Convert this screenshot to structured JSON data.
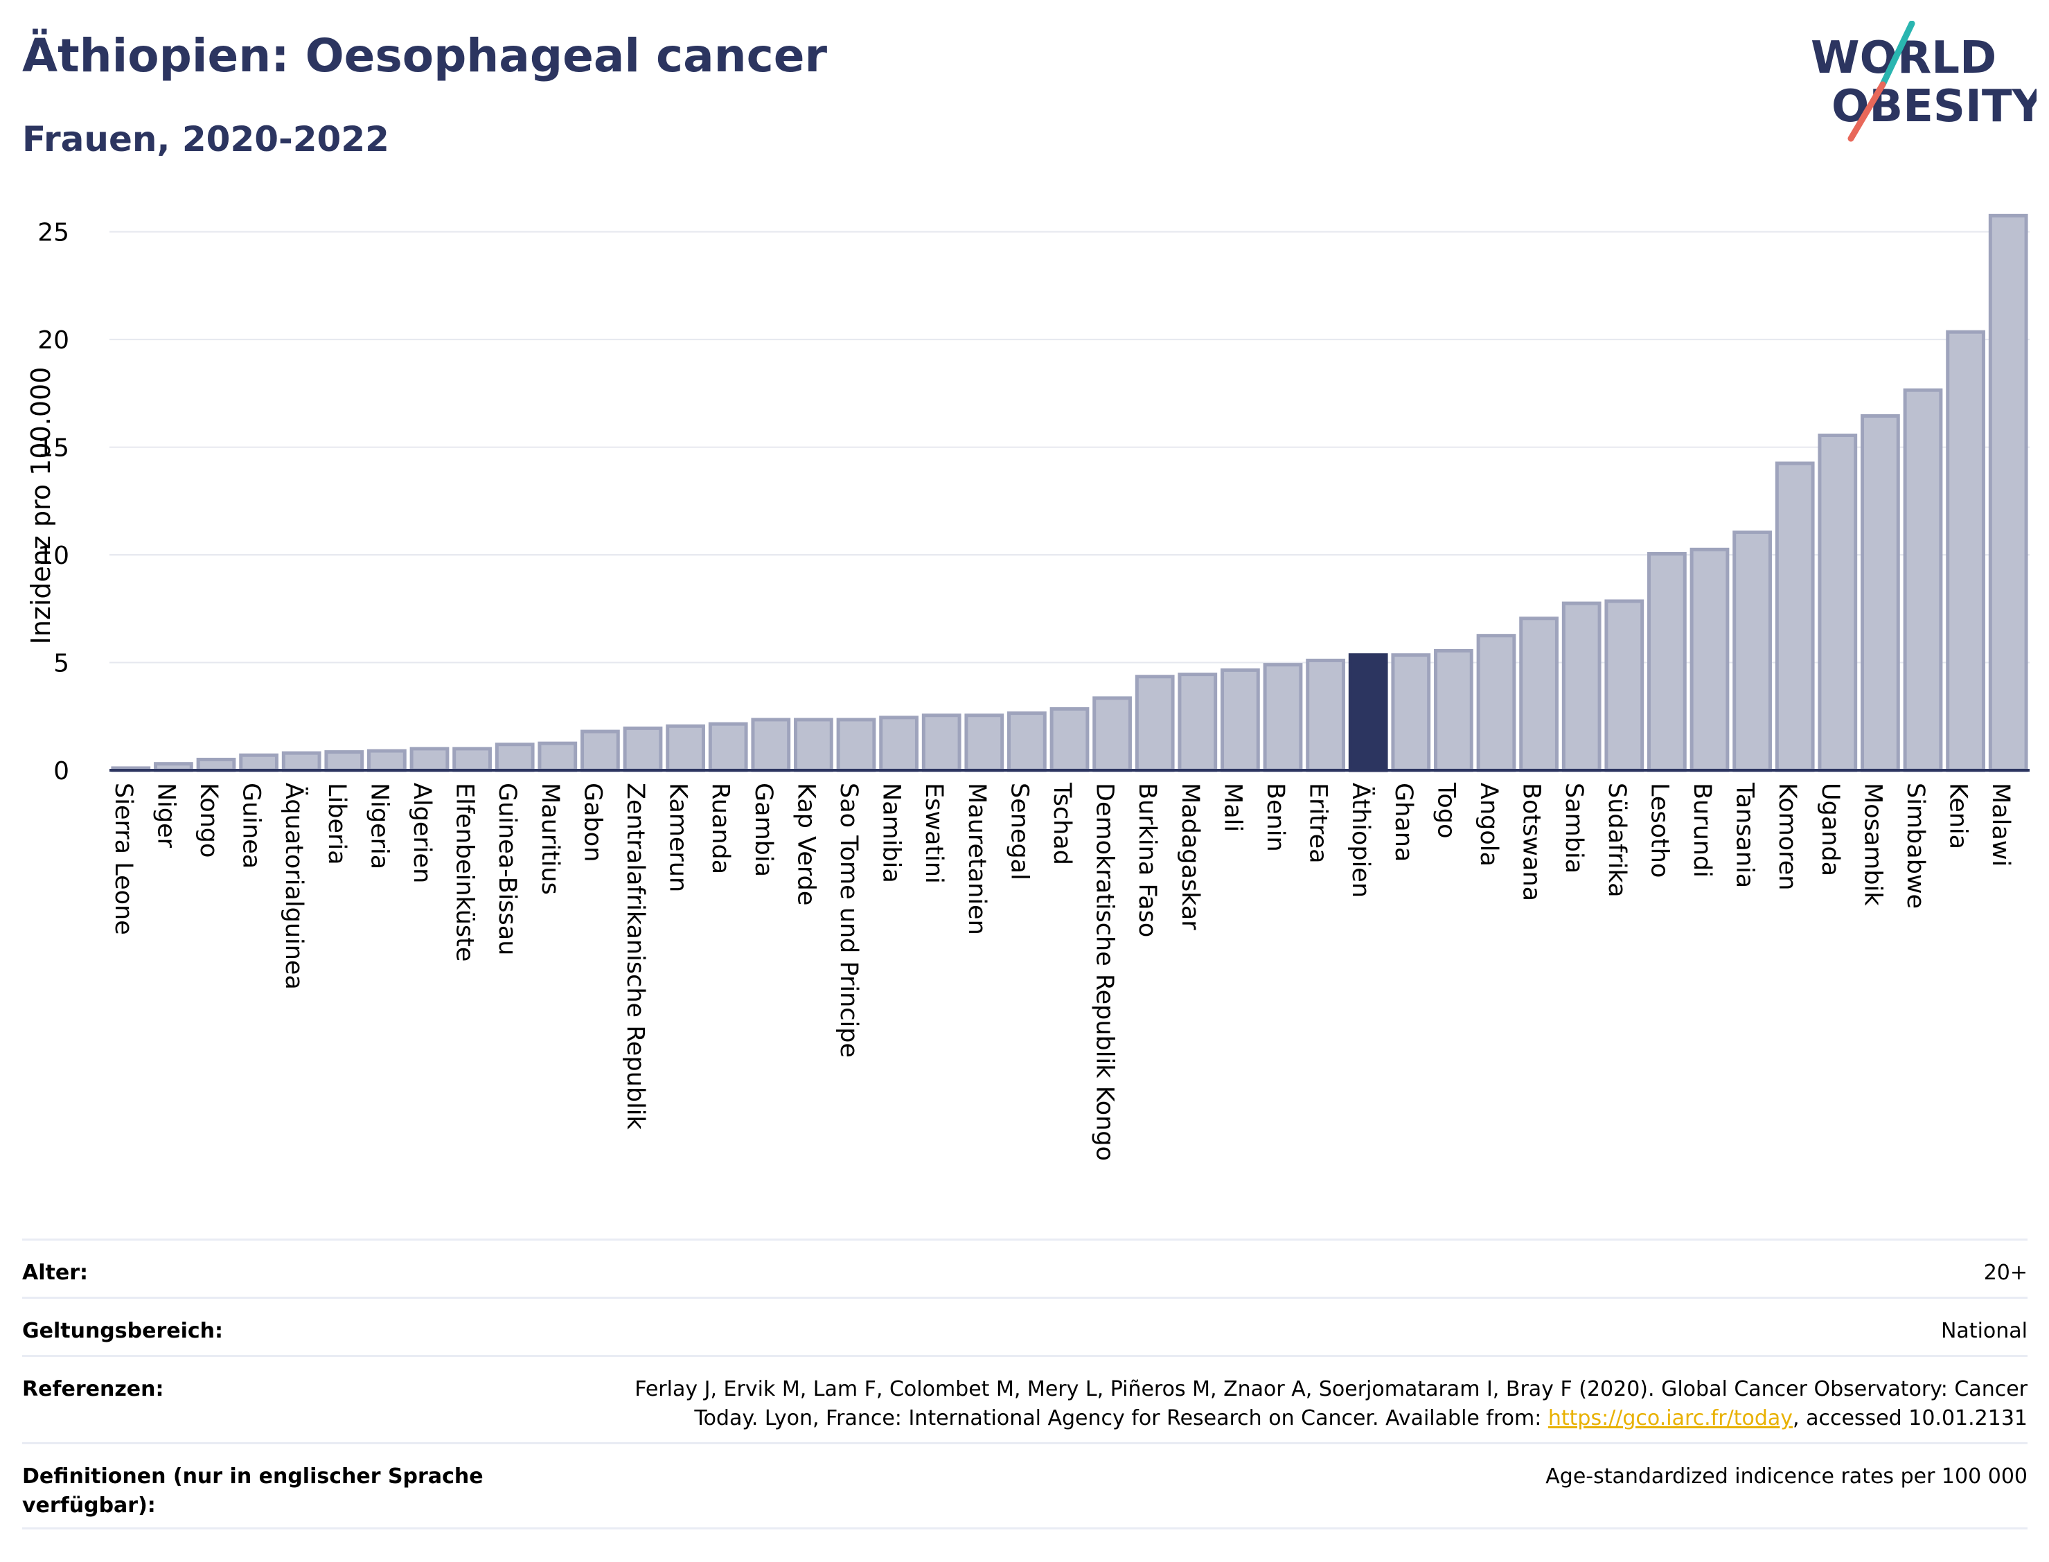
{
  "header": {
    "title": "Äthiopien: Oesophageal cancer",
    "subtitle": "Frauen, 2020-2022"
  },
  "logo": {
    "line1": "WORLD",
    "line2": "OBESITY",
    "slash_top_color": "#2ab5b0",
    "slash_bottom_color": "#e8685a"
  },
  "colors": {
    "bar": "#bcc0d0",
    "bar_stroke": "#9ea3bc",
    "highlight": "#2c3560",
    "axis": "#2c3560",
    "grid": "#e6e8ef"
  },
  "chart_data": {
    "type": "bar",
    "title": "Äthiopien: Oesophageal cancer",
    "subtitle": "Frauen, 2020-2022",
    "xlabel": "",
    "ylabel": "Inzidenz pro 100.000",
    "ylim": [
      0,
      26.5
    ],
    "yticks": [
      0,
      5,
      10,
      15,
      20,
      25
    ],
    "grid": true,
    "highlight": "Äthiopien",
    "categories": [
      "Sierra Leone",
      "Niger",
      "Kongo",
      "Guinea",
      "Äquatorialguinea",
      "Liberia",
      "Nigeria",
      "Algerien",
      "Elfenbeinküste",
      "Guinea-Bissau",
      "Mauritius",
      "Gabon",
      "Zentralafrikanische Republik",
      "Kamerun",
      "Ruanda",
      "Gambia",
      "Kap Verde",
      "Sao Tome und Principe",
      "Namibia",
      "Eswatini",
      "Mauretanien",
      "Senegal",
      "Tschad",
      "Demokratische Republik Kongo",
      "Burkina Faso",
      "Madagaskar",
      "Mali",
      "Benin",
      "Eritrea",
      "Äthiopien",
      "Ghana",
      "Togo",
      "Angola",
      "Botswana",
      "Sambia",
      "Südafrika",
      "Lesotho",
      "Burundi",
      "Tansania",
      "Komoren",
      "Uganda",
      "Mosambik",
      "Simbabwe",
      "Kenia",
      "Malawi"
    ],
    "values": [
      0.1,
      0.3,
      0.5,
      0.7,
      0.8,
      0.85,
      0.9,
      1.0,
      1.0,
      1.2,
      1.25,
      1.8,
      1.95,
      2.05,
      2.15,
      2.35,
      2.35,
      2.35,
      2.45,
      2.55,
      2.55,
      2.65,
      2.85,
      3.35,
      4.35,
      4.45,
      4.65,
      4.9,
      5.1,
      5.35,
      5.35,
      5.55,
      6.25,
      7.05,
      7.75,
      7.85,
      10.05,
      10.25,
      11.05,
      14.25,
      15.55,
      16.45,
      17.65,
      20.35,
      25.75
    ]
  },
  "meta": [
    {
      "key": "Alter:",
      "value": "20+"
    },
    {
      "key": "Geltungsbereich:",
      "value": "National"
    },
    {
      "key": "Referenzen:",
      "value_line1": "Ferlay J, Ervik M, Lam F, Colombet M, Mery L, Piñeros M, Znaor A, Soerjomataram I, Bray F (2020). Global Cancer Observatory: Cancer",
      "value_line2_before": "Today. Lyon, France: International Agency for Research on Cancer. Available from: ",
      "link": "https://gco.iarc.fr/today",
      "value_line2_after": ", accessed 10.01.2131"
    },
    {
      "key_line1": "Definitionen (nur in englischer Sprache",
      "key_line2": "verfügbar):",
      "value": "Age-standardized indicence rates per 100 000"
    }
  ]
}
